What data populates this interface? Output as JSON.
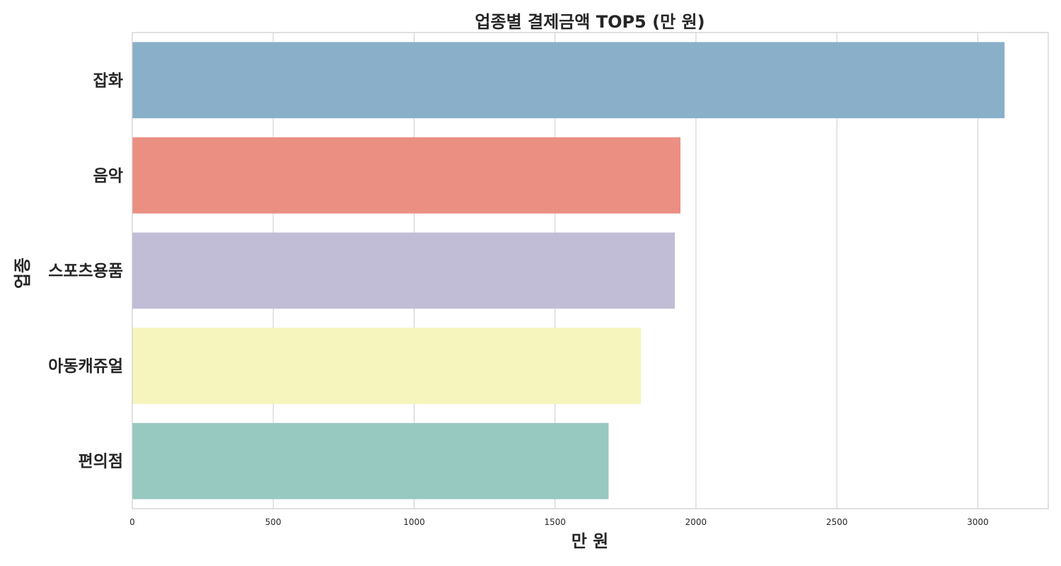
{
  "chart_data": {
    "type": "bar",
    "orientation": "horizontal",
    "title": "업종별 결제금액 TOP5 (만 원)",
    "xlabel": "만 원",
    "ylabel": "업종",
    "categories": [
      "잡화",
      "음악",
      "스포츠용품",
      "아동캐쥬얼",
      "편의점"
    ],
    "values": [
      3095,
      1945,
      1925,
      1805,
      1690
    ],
    "colors": [
      "#8aafc9",
      "#eb8f83",
      "#c1bdd6",
      "#f6f5bd",
      "#98c9c1"
    ],
    "xlim": [
      0,
      3250
    ],
    "xticks": [
      0,
      500,
      1000,
      1500,
      2000,
      2500,
      3000
    ],
    "grid": true,
    "legend": "none"
  }
}
